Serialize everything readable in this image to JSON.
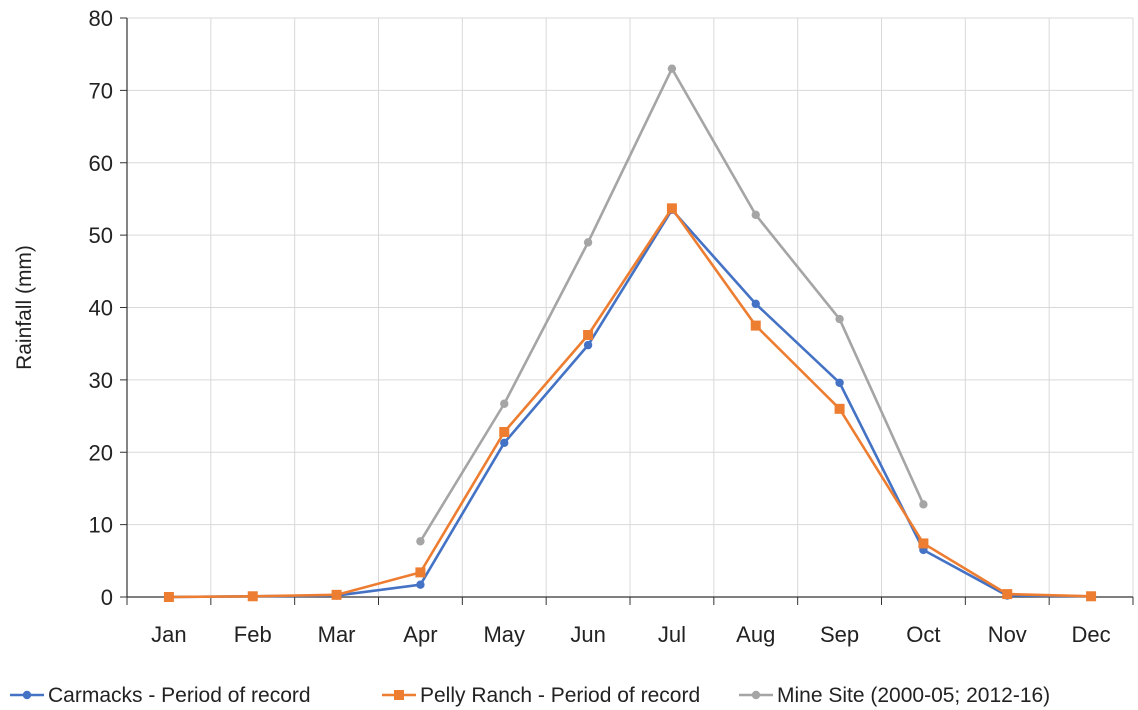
{
  "chart_data": {
    "type": "line",
    "title": "",
    "xlabel": "",
    "ylabel": "Rainfall (mm)",
    "categories": [
      "Jan",
      "Feb",
      "Mar",
      "Apr",
      "May",
      "Jun",
      "Jul",
      "Aug",
      "Sep",
      "Oct",
      "Nov",
      "Dec"
    ],
    "ylim": [
      0,
      80
    ],
    "yticks": [
      0,
      10,
      20,
      30,
      40,
      50,
      60,
      70,
      80
    ],
    "grid": true,
    "legend_position": "bottom",
    "series": [
      {
        "name": "Carmacks - Period of record",
        "color": "#4472C4",
        "marker": "circle",
        "values": [
          0.0,
          0.1,
          0.2,
          1.7,
          21.3,
          34.8,
          53.5,
          40.5,
          29.6,
          6.5,
          0.2,
          0.1
        ]
      },
      {
        "name": "Pelly Ranch - Period of record",
        "color": "#ED7D31",
        "marker": "square",
        "values": [
          0.0,
          0.1,
          0.3,
          3.4,
          22.8,
          36.2,
          53.7,
          37.5,
          26.0,
          7.4,
          0.4,
          0.1
        ]
      },
      {
        "name": "Mine Site (2000-05; 2012-16)",
        "color": "#A5A5A5",
        "marker": "circle",
        "values": [
          null,
          null,
          null,
          7.7,
          26.7,
          49.0,
          73.0,
          52.8,
          38.4,
          12.8,
          null,
          null
        ]
      }
    ]
  }
}
